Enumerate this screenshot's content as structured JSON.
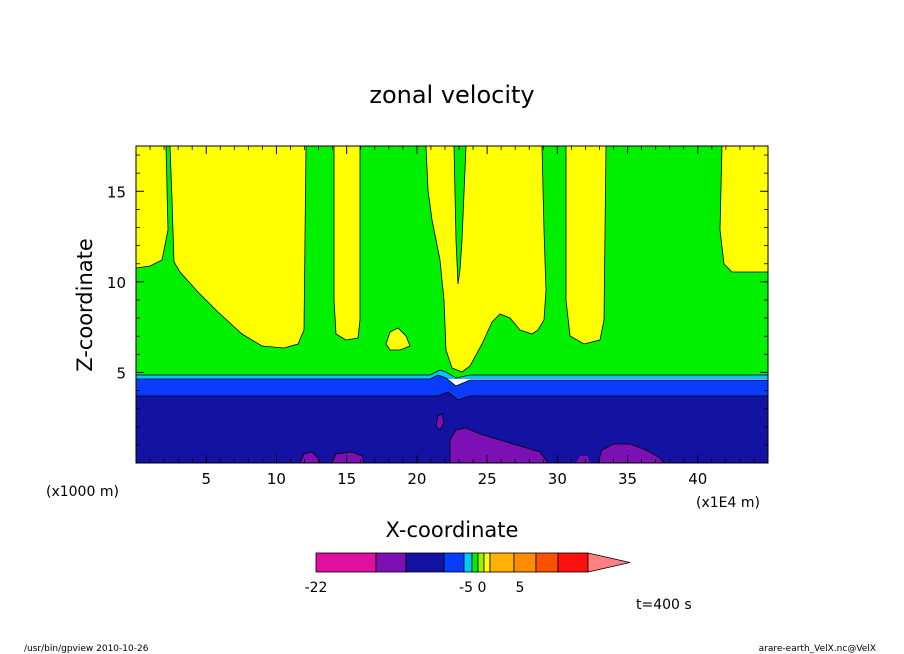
{
  "chart_data": {
    "type": "heatmap",
    "title": "zonal velocity",
    "xlabel": "X-coordinate",
    "ylabel": "Z-coordinate",
    "x_unit": "(x1E4 m)",
    "y_unit": "(x1000 m)",
    "xlim": [
      0,
      45
    ],
    "ylim": [
      0,
      17.5
    ],
    "x_ticks": [
      "5",
      "10",
      "15",
      "20",
      "25",
      "30",
      "35",
      "40"
    ],
    "x_tick_values": [
      5,
      10,
      15,
      20,
      25,
      30,
      35,
      40
    ],
    "y_ticks": [
      "5",
      "10",
      "15"
    ],
    "y_tick_values": [
      5,
      10,
      15
    ],
    "time_label": "t=400 s",
    "colorbar": {
      "tick_labels": [
        "-22",
        "-5",
        "0",
        "5"
      ],
      "colors": [
        "#e0109e",
        "#7d10b4",
        "#1412a2",
        "#0a3cff",
        "#00c8ff",
        "#00f000",
        "#a0f000",
        "#ffff00",
        "#ffb000",
        "#ff8c00",
        "#ff5000",
        "#ff1010",
        "#ff8080"
      ]
    },
    "colors": {
      "yellow": "#ffff00",
      "green": "#00f000",
      "navy": "#1412a2",
      "blue": "#0a3cff",
      "cyan": "#00c8ff",
      "purple": "#7d10b4"
    }
  },
  "footer": {
    "left": "/usr/bin/gpview   2010-10-26",
    "right": "arare-earth_VelX.nc@VelX"
  }
}
